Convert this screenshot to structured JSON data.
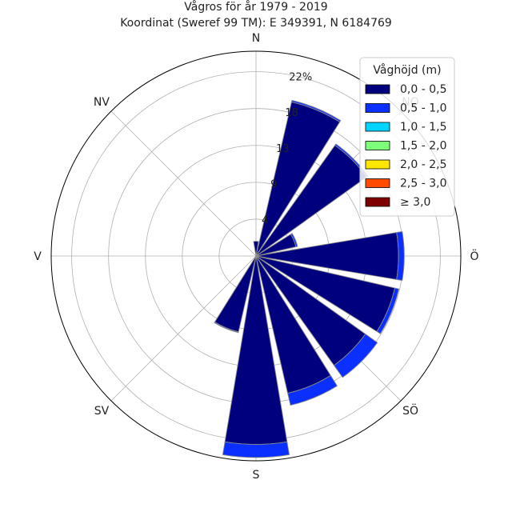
{
  "chart_data": {
    "type": "windrose",
    "title": "Vågros för år 1979 - 2019",
    "subtitle": "Koordinat (Sweref 99 TM): E 349391, N 6184769",
    "directions": [
      "N",
      "NO",
      "Ö",
      "SÖ",
      "S",
      "SV",
      "V",
      "NV"
    ],
    "ring_labels": [
      "4",
      "9",
      "13",
      "18",
      "22%"
    ],
    "rmax": 25,
    "ring_values": [
      4.5,
      9,
      13.5,
      18,
      22.5
    ],
    "legend": {
      "title": "Våghöjd (m)",
      "placement": "top-right",
      "entries": [
        "0,0 - 0,5",
        "0,5 - 1,0",
        "1,0 - 1,5",
        "1,5 - 2,0",
        "2,0 - 2,5",
        "2,5 - 3,0",
        "≥ 3,0"
      ],
      "colors": [
        "#00007f",
        "#0a2fff",
        "#00d4ff",
        "#7dff7a",
        "#ffe600",
        "#ff4a00",
        "#7f0000"
      ]
    },
    "sectors": [
      {
        "direction_deg": 0,
        "values": [
          1.8
        ]
      },
      {
        "direction_deg": 22.5,
        "values": [
          19.3,
          0.2
        ]
      },
      {
        "direction_deg": 45,
        "values": [
          16.6,
          0.2
        ]
      },
      {
        "direction_deg": 67.5,
        "values": [
          5.0,
          0.2
        ]
      },
      {
        "direction_deg": 90,
        "values": [
          17.4,
          0.7
        ]
      },
      {
        "direction_deg": 112.5,
        "values": [
          17.4,
          0.5
        ]
      },
      {
        "direction_deg": 135,
        "values": [
          16.4,
          1.8
        ]
      },
      {
        "direction_deg": 157.5,
        "values": [
          17.2,
          1.5
        ]
      },
      {
        "direction_deg": 180,
        "values": [
          23.0,
          1.6
        ]
      },
      {
        "direction_deg": 202.5,
        "values": [
          9.5,
          0.1
        ]
      },
      {
        "direction_deg": 225,
        "values": []
      },
      {
        "direction_deg": 247.5,
        "values": []
      },
      {
        "direction_deg": 270,
        "values": []
      },
      {
        "direction_deg": 292.5,
        "values": []
      },
      {
        "direction_deg": 315,
        "values": []
      },
      {
        "direction_deg": 337.5,
        "values": []
      }
    ]
  }
}
